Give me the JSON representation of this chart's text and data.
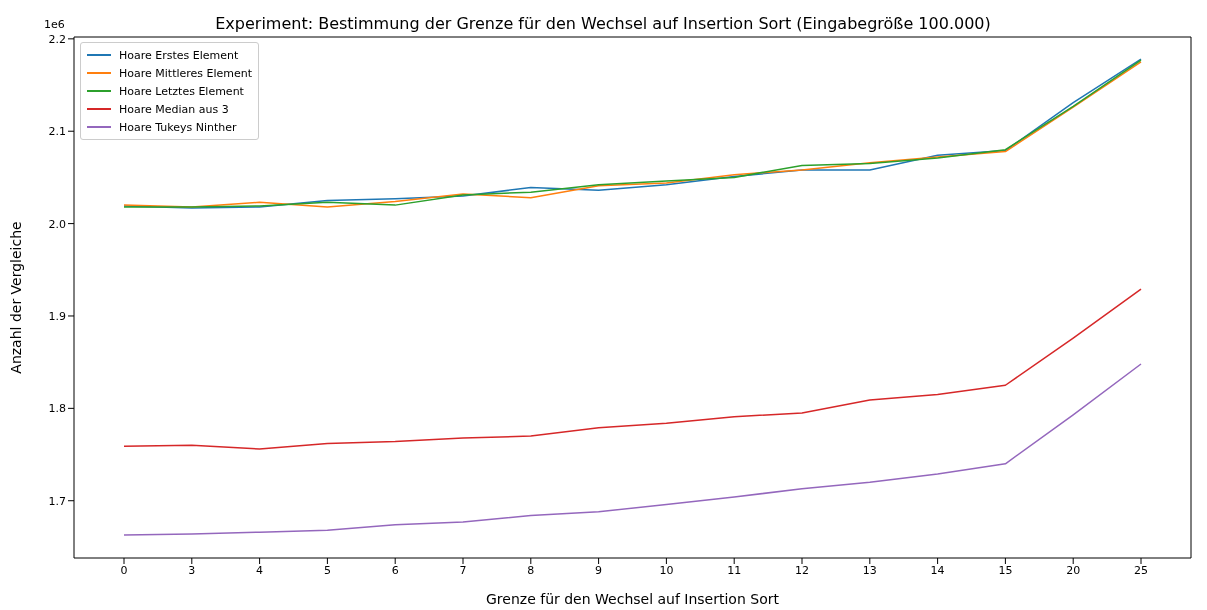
{
  "chart_data": {
    "type": "line",
    "title": "Experiment: Bestimmung der Grenze für den Wechsel auf Insertion Sort (Eingabegröße 100.000)",
    "xlabel": "Grenze für den Wechsel auf Insertion Sort",
    "ylabel": "Anzahl der Vergleiche",
    "annotations": [
      "1e6"
    ],
    "categories": [
      "0",
      "3",
      "4",
      "5",
      "6",
      "7",
      "8",
      "9",
      "10",
      "11",
      "12",
      "13",
      "14",
      "15",
      "20",
      "25"
    ],
    "ylim": [
      1.638,
      2.202
    ],
    "yticks": [
      {
        "value": 1.7,
        "label": "1.7"
      },
      {
        "value": 1.8,
        "label": "1.8"
      },
      {
        "value": 1.9,
        "label": "1.9"
      },
      {
        "value": 2.0,
        "label": "2.0"
      },
      {
        "value": 2.1,
        "label": "2.1"
      },
      {
        "value": 2.2,
        "label": "2.2"
      }
    ],
    "grid": false,
    "legend": "top left",
    "marker": "none",
    "line_style": "solid",
    "series": [
      {
        "name": "Hoare Erstes Element",
        "color": "#1f77b4",
        "values": [
          2.019,
          2.017,
          2.018,
          2.025,
          2.027,
          2.03,
          2.039,
          2.036,
          2.042,
          2.051,
          2.058,
          2.058,
          2.074,
          2.079,
          2.131,
          2.178
        ]
      },
      {
        "name": "Hoare Mittleres Element",
        "color": "#ff7f0e",
        "values": [
          2.02,
          2.018,
          2.023,
          2.018,
          2.024,
          2.032,
          2.028,
          2.041,
          2.044,
          2.053,
          2.058,
          2.066,
          2.072,
          2.078,
          2.126,
          2.175
        ]
      },
      {
        "name": "Hoare Letztes Element",
        "color": "#2ca02c",
        "values": [
          2.018,
          2.018,
          2.019,
          2.023,
          2.02,
          2.031,
          2.034,
          2.042,
          2.046,
          2.05,
          2.063,
          2.065,
          2.071,
          2.08,
          2.127,
          2.177
        ]
      },
      {
        "name": "Hoare Median aus 3",
        "color": "#d62728",
        "values": [
          1.759,
          1.76,
          1.756,
          1.762,
          1.764,
          1.768,
          1.77,
          1.779,
          1.784,
          1.791,
          1.795,
          1.809,
          1.815,
          1.825,
          1.876,
          1.929
        ]
      },
      {
        "name": "Hoare Tukeys Ninther",
        "color": "#9467bd",
        "values": [
          1.663,
          1.664,
          1.666,
          1.668,
          1.674,
          1.677,
          1.684,
          1.688,
          1.696,
          1.704,
          1.713,
          1.72,
          1.729,
          1.74,
          1.793,
          1.848
        ]
      }
    ]
  }
}
